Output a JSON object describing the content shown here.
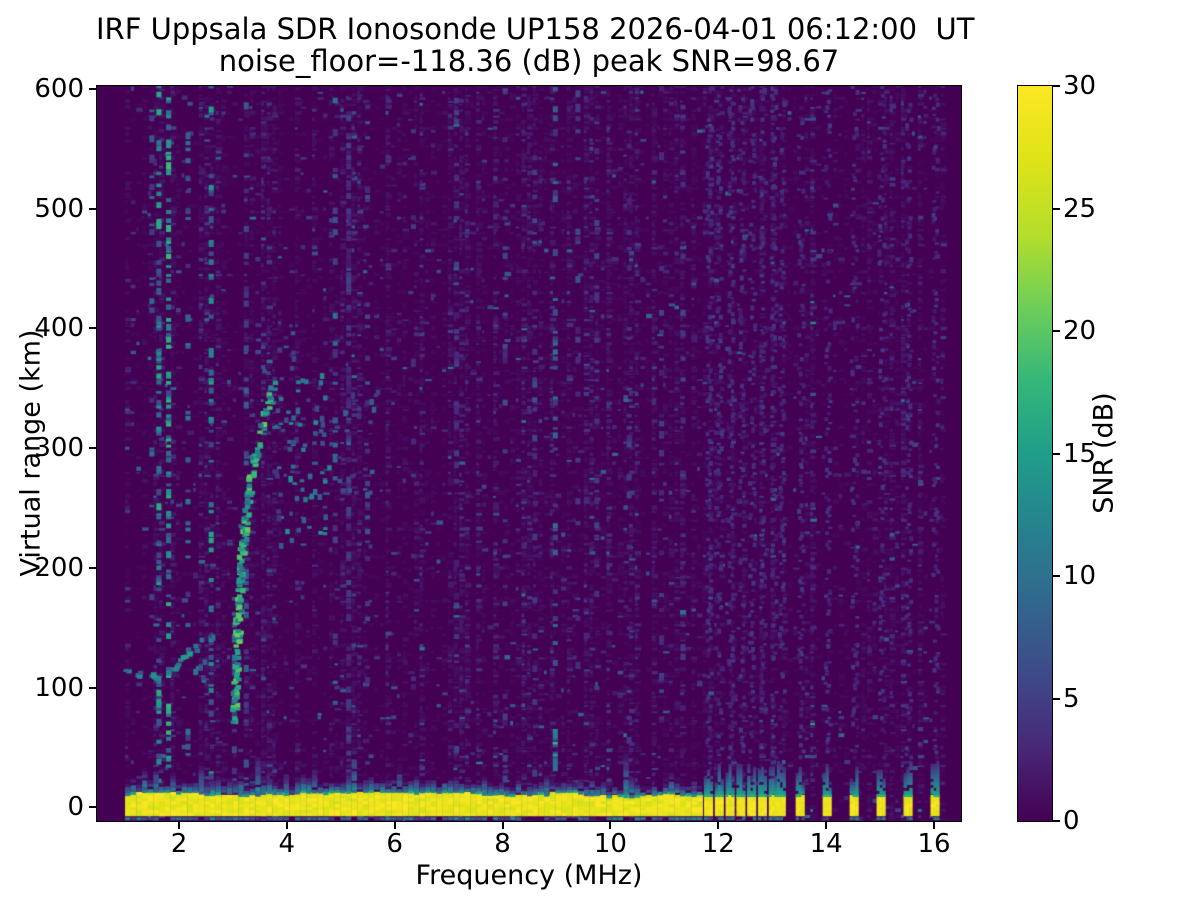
{
  "chart_data": {
    "type": "heatmap",
    "title": "IRF Uppsala SDR Ionosonde UP158 2026-04-01 06:12:00  UT",
    "subtitle": "noise_floor=-118.36 (dB) peak SNR=98.67",
    "xlabel": "Frequency (MHz)",
    "ylabel": "Virtual range (km)",
    "colorbar_label": "SNR (dB)",
    "xlim": [
      0.48,
      16.5
    ],
    "ylim": [
      -11.5,
      602.5
    ],
    "xticks": [
      2,
      4,
      6,
      8,
      10,
      12,
      14,
      16
    ],
    "yticks": [
      0,
      100,
      200,
      300,
      400,
      500,
      600
    ],
    "colorbar_ticks": [
      0,
      5,
      10,
      15,
      20,
      25,
      30
    ],
    "clim": [
      0,
      30
    ],
    "colormap": "viridis",
    "colormap_stops": [
      [
        68,
        1,
        84
      ],
      [
        72,
        40,
        120
      ],
      [
        62,
        74,
        137
      ],
      [
        49,
        104,
        142
      ],
      [
        38,
        130,
        142
      ],
      [
        31,
        158,
        137
      ],
      [
        53,
        183,
        121
      ],
      [
        110,
        206,
        88
      ],
      [
        181,
        222,
        43
      ],
      [
        223,
        227,
        24
      ],
      [
        253,
        231,
        37
      ]
    ],
    "background_color": "#440154",
    "figure_background": "#ffffff",
    "text_color": "#000000",
    "noise": {
      "fmin": 1.0,
      "fmax": 16.2,
      "df": 0.105,
      "dr": 2.5,
      "base": 0.5,
      "speck_p": 0.035,
      "vmin": 0.45,
      "seed": 20260401
    },
    "features": {
      "ground_return": {
        "f0": 1.0,
        "f1": 11.62,
        "r_lo": -7.5,
        "r_hi": 8.5,
        "snr": 30
      },
      "ground_bars": {
        "freqs": [
          11.8,
          12.0,
          12.2,
          12.4,
          12.6,
          12.8,
          13.0,
          13.15,
          13.5,
          14.0,
          14.5,
          15.0,
          15.5,
          16.0
        ],
        "width": 0.13,
        "snr": 30,
        "col_noise_d": 0.45,
        "col_noise_s": 3.4
      },
      "e_trace": {
        "pts": [
          [
            1.02,
            112
          ],
          [
            1.25,
            109
          ],
          [
            1.5,
            107
          ],
          [
            1.68,
            108
          ],
          [
            1.85,
            113
          ],
          [
            2.0,
            120
          ],
          [
            2.12,
            127
          ],
          [
            2.28,
            131
          ]
        ],
        "lo": 7,
        "hi": 16,
        "p": 0.72,
        "thick": 2,
        "jitter": 5
      },
      "f_trace": {
        "pts": [
          [
            2.99,
            70
          ],
          [
            3.02,
            115
          ],
          [
            3.06,
            158
          ],
          [
            3.11,
            198
          ],
          [
            3.17,
            230
          ],
          [
            3.25,
            259
          ],
          [
            3.34,
            284
          ],
          [
            3.44,
            305
          ],
          [
            3.54,
            322
          ],
          [
            3.64,
            337
          ],
          [
            3.73,
            350
          ]
        ],
        "lo": 9,
        "hi": 21,
        "p": 0.8,
        "thick": 3,
        "jitter": 7
      },
      "scatter": [
        {
          "f0": 3.78,
          "f1": 4.75,
          "r0": 215,
          "r1": 358,
          "n": 70,
          "lo": 4,
          "hi": 14
        },
        {
          "f0": 4.75,
          "f1": 5.65,
          "r0": 245,
          "r1": 345,
          "n": 22,
          "lo": 3,
          "hi": 9
        },
        {
          "f0": 2.2,
          "f1": 2.62,
          "r0": 100,
          "r1": 142,
          "n": 10,
          "lo": 4,
          "hi": 11
        },
        {
          "f0": 3.4,
          "f1": 4.1,
          "r0": 355,
          "r1": 395,
          "n": 10,
          "lo": 3,
          "hi": 8
        }
      ],
      "rfi_columns": [
        {
          "f": 1.45,
          "s": 8,
          "d": 0.12
        },
        {
          "f": 1.58,
          "s": 15,
          "d": 0.3
        },
        {
          "f": 1.76,
          "s": 16,
          "d": 0.33
        },
        {
          "f": 2.12,
          "s": 10,
          "d": 0.18
        },
        {
          "f": 2.55,
          "s": 14,
          "d": 0.26
        },
        {
          "f": 2.98,
          "s": 10,
          "d": 0.3,
          "r0": 15,
          "r1": 180
        },
        {
          "f": 3.2,
          "s": 8,
          "d": 0.15
        },
        {
          "f": 4.85,
          "s": 9,
          "d": 0.14
        },
        {
          "f": 5.1,
          "s": 5,
          "d": 0.35
        },
        {
          "f": 5.45,
          "s": 7,
          "d": 0.12
        },
        {
          "f": 6.3,
          "s": 5,
          "d": 0.1
        },
        {
          "f": 7.1,
          "s": 5,
          "d": 0.1
        },
        {
          "f": 8.0,
          "s": 6,
          "d": 0.12
        },
        {
          "f": 8.55,
          "s": 6,
          "d": 0.1
        },
        {
          "f": 8.93,
          "s": 9,
          "d": 0.16
        },
        {
          "f": 8.93,
          "s": 16,
          "d": 0.5,
          "r0": 30,
          "r1": 65
        },
        {
          "f": 9.35,
          "s": 6,
          "d": 0.1
        },
        {
          "f": 9.7,
          "s": 5,
          "d": 0.1
        },
        {
          "f": 10.3,
          "s": 5,
          "d": 0.1
        },
        {
          "f": 10.9,
          "s": 5,
          "d": 0.12
        },
        {
          "f": 11.3,
          "s": 5,
          "d": 0.12
        }
      ]
    }
  }
}
